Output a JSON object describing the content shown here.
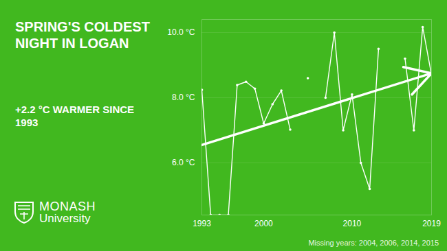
{
  "chart_data": {
    "type": "line",
    "title": "SPRING'S COLDEST NIGHT IN LOGAN",
    "annotation": "+2.2 °C WARMER SINCE 1993",
    "caption": "Missing years: 2004, 2006, 2014, 2015",
    "logo": [
      "MONASH",
      "University"
    ],
    "x": [
      1993,
      1994,
      1995,
      1996,
      1997,
      1998,
      1999,
      2000,
      2001,
      2002,
      2003,
      2004,
      2005,
      2006,
      2007,
      2008,
      2009,
      2010,
      2011,
      2012,
      2013,
      2014,
      2015,
      2016,
      2017,
      2018,
      2019
    ],
    "values": [
      8.24,
      4.4,
      4.4,
      4.4,
      8.39,
      8.49,
      8.28,
      7.21,
      7.8,
      8.22,
      7.02,
      null,
      8.6,
      null,
      8.0,
      10.0,
      7.0,
      8.1,
      6.0,
      5.2,
      9.5,
      null,
      null,
      9.2,
      7.0,
      10.17,
      8.7
    ],
    "color": "#ffffff",
    "marker": "circle",
    "xlim": [
      1993,
      2019
    ],
    "xticks": [
      1993,
      2000,
      2010,
      2019
    ],
    "ylim": [
      4.4,
      10.4
    ],
    "yticks": [
      {
        "value": 6,
        "label": "6.0 °C"
      },
      {
        "value": 8,
        "label": "8.0 °C"
      },
      {
        "value": 10,
        "label": "10.0 °C"
      }
    ],
    "grid": true,
    "trend": {
      "x": [
        1993,
        2019
      ],
      "values": [
        6.55,
        8.75
      ]
    }
  }
}
